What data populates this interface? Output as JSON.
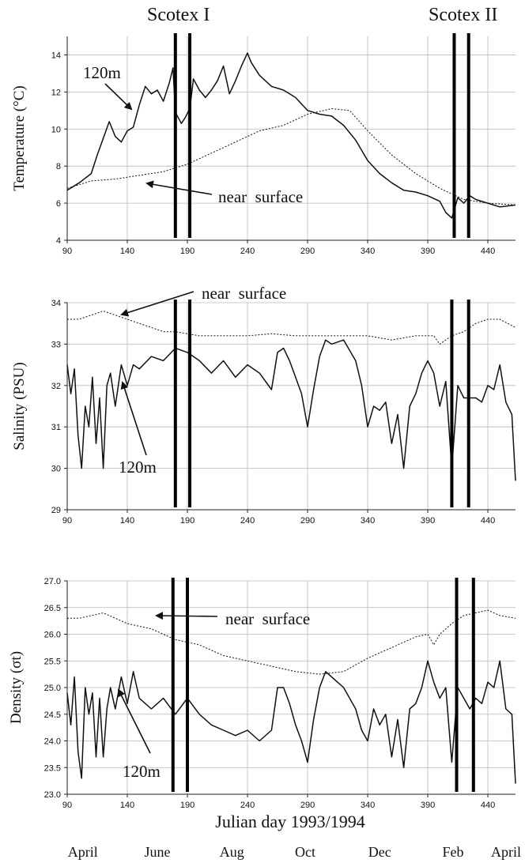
{
  "figure": {
    "campaign_labels": [
      "Scotex I",
      "Scotex II"
    ],
    "xlabel": "Julian day 1993/1994",
    "month_labels": [
      {
        "label": "April",
        "day": 103
      },
      {
        "label": "June",
        "day": 165
      },
      {
        "label": "Aug",
        "day": 227
      },
      {
        "label": "Oct",
        "day": 288
      },
      {
        "label": "Dec",
        "day": 350
      },
      {
        "label": "Feb",
        "day": 411
      },
      {
        "label": "April",
        "day": 470
      }
    ]
  },
  "chart_data": [
    {
      "type": "line",
      "ylabel": "Temperature (°C)",
      "xlim": [
        90,
        463
      ],
      "ylim": [
        4,
        15
      ],
      "xticks": [
        90,
        140,
        190,
        240,
        290,
        340,
        390,
        440
      ],
      "yticks": [
        4,
        6,
        8,
        10,
        12,
        14
      ],
      "ytick_labels": [
        "4",
        "6",
        "8",
        "10",
        "12",
        "14"
      ],
      "grid": true,
      "markers": [
        180,
        192,
        412,
        424
      ],
      "series": [
        {
          "name": "120m",
          "style": "solid",
          "x": [
            90,
            100,
            110,
            115,
            120,
            125,
            130,
            135,
            140,
            145,
            150,
            155,
            160,
            165,
            170,
            175,
            178,
            180,
            185,
            188,
            192,
            195,
            200,
            205,
            210,
            215,
            220,
            225,
            230,
            235,
            240,
            243,
            250,
            260,
            270,
            280,
            290,
            300,
            310,
            320,
            330,
            340,
            350,
            360,
            370,
            380,
            390,
            400,
            405,
            410,
            415,
            420,
            425,
            430,
            440,
            450,
            463
          ],
          "y": [
            6.7,
            7.1,
            7.6,
            8.6,
            9.5,
            10.4,
            9.6,
            9.3,
            9.9,
            10.1,
            11.3,
            12.3,
            11.9,
            12.1,
            11.5,
            12.5,
            13.3,
            10.9,
            10.3,
            10.6,
            11.1,
            12.7,
            12.1,
            11.7,
            12.1,
            12.6,
            13.4,
            11.9,
            12.6,
            13.4,
            14.1,
            13.6,
            12.9,
            12.3,
            12.1,
            11.7,
            11.0,
            10.8,
            10.7,
            10.2,
            9.4,
            8.3,
            7.6,
            7.1,
            6.7,
            6.6,
            6.4,
            6.1,
            5.5,
            5.2,
            6.3,
            6.0,
            6.4,
            6.2,
            6.0,
            5.8,
            5.9
          ]
        },
        {
          "name": "near surface",
          "style": "dotted",
          "x": [
            90,
            110,
            130,
            150,
            170,
            190,
            210,
            230,
            250,
            270,
            290,
            310,
            325,
            340,
            360,
            380,
            400,
            420,
            440,
            463
          ],
          "y": [
            6.8,
            7.2,
            7.3,
            7.5,
            7.7,
            8.1,
            8.7,
            9.3,
            9.9,
            10.2,
            10.8,
            11.1,
            11.0,
            9.9,
            8.6,
            7.6,
            6.8,
            6.2,
            6.0,
            5.9
          ]
        }
      ],
      "annotations": [
        "120m",
        "near  surface"
      ]
    },
    {
      "type": "line",
      "ylabel": "Salinity (PSU)",
      "xlim": [
        90,
        463
      ],
      "ylim": [
        29,
        34
      ],
      "xticks": [
        90,
        140,
        190,
        240,
        290,
        340,
        390,
        440
      ],
      "yticks": [
        29,
        30,
        31,
        32,
        33,
        34
      ],
      "ytick_labels": [
        "29",
        "30",
        "31",
        "32",
        "33",
        "34"
      ],
      "grid": true,
      "markers": [
        180,
        192,
        410,
        424
      ],
      "series": [
        {
          "name": "near surface",
          "style": "dotted",
          "x": [
            90,
            100,
            110,
            120,
            130,
            140,
            150,
            160,
            170,
            180,
            190,
            200,
            220,
            240,
            260,
            280,
            300,
            320,
            340,
            360,
            380,
            395,
            400,
            410,
            420,
            430,
            440,
            450,
            463
          ],
          "y": [
            33.6,
            33.6,
            33.7,
            33.8,
            33.7,
            33.6,
            33.5,
            33.4,
            33.3,
            33.3,
            33.25,
            33.2,
            33.2,
            33.2,
            33.25,
            33.2,
            33.2,
            33.2,
            33.2,
            33.1,
            33.2,
            33.2,
            33.0,
            33.2,
            33.3,
            33.5,
            33.6,
            33.6,
            33.4
          ]
        },
        {
          "name": "120m",
          "style": "solid",
          "x": [
            90,
            93,
            96,
            99,
            102,
            105,
            108,
            111,
            114,
            117,
            120,
            123,
            126,
            130,
            135,
            140,
            145,
            150,
            160,
            170,
            180,
            190,
            200,
            210,
            220,
            230,
            240,
            250,
            260,
            265,
            270,
            275,
            280,
            285,
            290,
            295,
            300,
            305,
            310,
            320,
            330,
            335,
            340,
            345,
            350,
            355,
            360,
            365,
            370,
            375,
            380,
            385,
            390,
            395,
            400,
            405,
            410,
            415,
            420,
            425,
            430,
            435,
            440,
            445,
            450,
            455,
            460,
            463
          ],
          "y": [
            32.5,
            31.8,
            32.4,
            30.8,
            30.0,
            31.5,
            31.0,
            32.2,
            30.6,
            31.7,
            30.0,
            32.0,
            32.3,
            31.5,
            32.5,
            32.0,
            32.5,
            32.4,
            32.7,
            32.6,
            32.9,
            32.8,
            32.6,
            32.3,
            32.6,
            32.2,
            32.5,
            32.3,
            31.9,
            32.8,
            32.9,
            32.6,
            32.2,
            31.8,
            31.0,
            31.9,
            32.7,
            33.1,
            33.0,
            33.1,
            32.6,
            32.0,
            31.0,
            31.5,
            31.4,
            31.6,
            30.6,
            31.3,
            30.0,
            31.5,
            31.8,
            32.3,
            32.6,
            32.3,
            31.5,
            32.1,
            30.0,
            32.0,
            31.7,
            31.7,
            31.7,
            31.6,
            32.0,
            31.9,
            32.5,
            31.6,
            31.3,
            29.7
          ]
        }
      ],
      "annotations": [
        "near  surface",
        "120m"
      ]
    },
    {
      "type": "line",
      "ylabel": "Density (σt)",
      "xlim": [
        90,
        463
      ],
      "ylim": [
        23,
        27
      ],
      "xticks": [
        90,
        140,
        190,
        240,
        290,
        340,
        390,
        440
      ],
      "yticks": [
        23.0,
        23.5,
        24.0,
        24.5,
        25.0,
        25.5,
        26.0,
        26.5,
        27.0
      ],
      "ytick_labels": [
        "23.0",
        "23.5",
        "24.0",
        "24.5",
        "25.0",
        "25.5",
        "26.0",
        "26.5",
        "27.0"
      ],
      "grid": true,
      "markers": [
        178,
        190,
        414,
        428
      ],
      "series": [
        {
          "name": "near surface",
          "style": "dotted",
          "x": [
            90,
            100,
            110,
            120,
            130,
            140,
            150,
            160,
            170,
            180,
            190,
            200,
            210,
            220,
            240,
            260,
            280,
            300,
            320,
            340,
            360,
            380,
            390,
            395,
            400,
            410,
            420,
            430,
            440,
            450,
            463
          ],
          "y": [
            26.3,
            26.3,
            26.35,
            26.4,
            26.3,
            26.2,
            26.15,
            26.1,
            26.0,
            25.9,
            25.85,
            25.8,
            25.7,
            25.6,
            25.5,
            25.4,
            25.3,
            25.25,
            25.3,
            25.55,
            25.75,
            25.95,
            26.0,
            25.8,
            26.0,
            26.2,
            26.35,
            26.4,
            26.45,
            26.35,
            26.3
          ]
        },
        {
          "name": "120m",
          "style": "solid",
          "x": [
            90,
            93,
            96,
            99,
            102,
            105,
            108,
            111,
            114,
            117,
            120,
            123,
            126,
            130,
            135,
            140,
            145,
            150,
            160,
            170,
            180,
            190,
            200,
            210,
            220,
            230,
            240,
            250,
            260,
            265,
            270,
            275,
            280,
            285,
            290,
            295,
            300,
            305,
            310,
            320,
            330,
            335,
            340,
            345,
            350,
            355,
            360,
            365,
            370,
            375,
            380,
            385,
            390,
            395,
            400,
            405,
            410,
            415,
            420,
            425,
            430,
            435,
            440,
            445,
            450,
            455,
            460,
            463
          ],
          "y": [
            24.9,
            24.3,
            25.2,
            23.8,
            23.3,
            25.0,
            24.5,
            24.9,
            23.7,
            24.8,
            23.7,
            24.6,
            25.0,
            24.6,
            25.2,
            24.7,
            25.3,
            24.8,
            24.6,
            24.8,
            24.5,
            24.8,
            24.5,
            24.3,
            24.2,
            24.1,
            24.2,
            24.0,
            24.2,
            25.0,
            25.0,
            24.7,
            24.3,
            24.0,
            23.6,
            24.4,
            25.0,
            25.3,
            25.2,
            25.0,
            24.6,
            24.2,
            24.0,
            24.6,
            24.3,
            24.5,
            23.7,
            24.4,
            23.5,
            24.6,
            24.7,
            25.0,
            25.5,
            25.1,
            24.8,
            25.0,
            23.6,
            25.0,
            24.8,
            24.6,
            24.8,
            24.7,
            25.1,
            25.0,
            25.5,
            24.6,
            24.5,
            23.2
          ]
        }
      ],
      "annotations": [
        "near  surface",
        "120m"
      ]
    }
  ]
}
